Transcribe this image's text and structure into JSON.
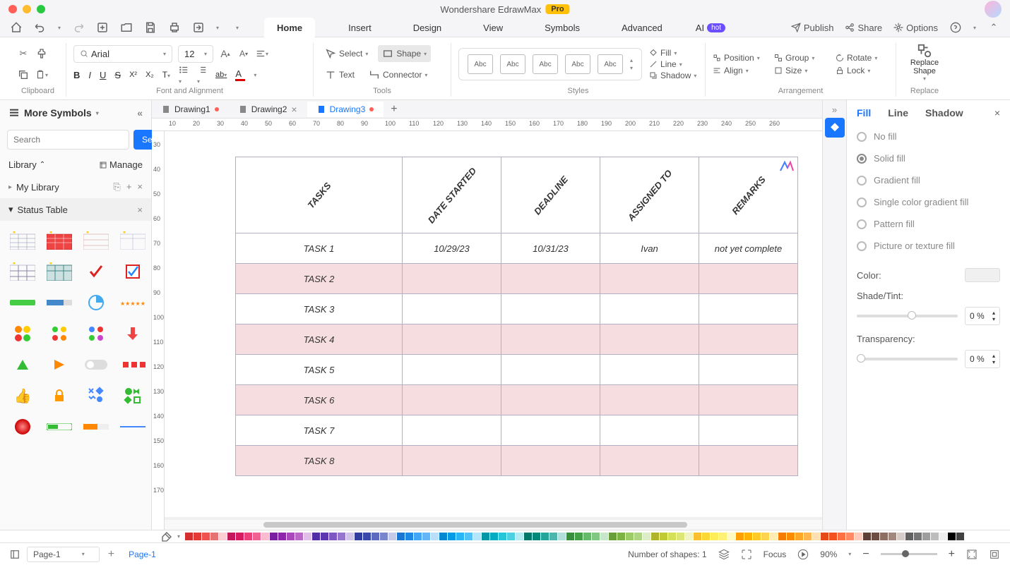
{
  "title": "Wondershare EdrawMax",
  "pro_badge": "Pro",
  "qat_right": {
    "publish": "Publish",
    "share": "Share",
    "options": "Options"
  },
  "menu_tabs": [
    "Home",
    "Insert",
    "Design",
    "View",
    "Symbols",
    "Advanced"
  ],
  "menu_ai": "AI",
  "menu_hot": "hot",
  "ribbon": {
    "clipboard_label": "Clipboard",
    "font_name": "Arial",
    "font_size": "12",
    "font_label": "Font and Alignment",
    "select_label": "Select",
    "shape_label": "Shape",
    "text_label": "Text",
    "connector_label": "Connector",
    "tools_label": "Tools",
    "abc": "Abc",
    "styles_label": "Styles",
    "fill_label": "Fill",
    "line_label": "Line",
    "shadow_label": "Shadow",
    "position_label": "Position",
    "align_label": "Align",
    "group_label": "Group",
    "size_label": "Size",
    "rotate_label": "Rotate",
    "lock_label": "Lock",
    "arrangement_label": "Arrangement",
    "replace_shape": "Replace\nShape",
    "replace_label": "Replace"
  },
  "sidebar": {
    "title": "More Symbols",
    "search_placeholder": "Search",
    "search_btn": "Search",
    "library": "Library",
    "manage": "Manage",
    "my_library": "My Library",
    "status_table": "Status Table"
  },
  "doc_tabs": [
    {
      "name": "Drawing1",
      "modified": true,
      "active": false
    },
    {
      "name": "Drawing2",
      "modified": false,
      "active": false,
      "closable": true
    },
    {
      "name": "Drawing3",
      "modified": true,
      "active": true
    }
  ],
  "ruler_h": [
    10,
    20,
    30,
    40,
    50,
    60,
    70,
    80,
    90,
    100,
    110,
    120,
    130,
    140,
    150,
    160,
    170,
    180,
    190,
    200,
    210,
    220,
    230,
    240,
    250,
    260
  ],
  "ruler_v": [
    30,
    40,
    50,
    60,
    70,
    80,
    90,
    100,
    110,
    120,
    130,
    140,
    150,
    160,
    170
  ],
  "table": {
    "headers": [
      "TASKS",
      "DATE STARTED",
      "DEADLINE",
      "ASSIGNED TO",
      "REMARKS"
    ],
    "rows": [
      {
        "task": "TASK 1",
        "date_started": "10/29/23",
        "deadline": "10/31/23",
        "assigned": "Ivan",
        "remarks": "not yet complete",
        "even": false
      },
      {
        "task": "TASK 2",
        "date_started": "",
        "deadline": "",
        "assigned": "",
        "remarks": "",
        "even": true
      },
      {
        "task": "TASK 3",
        "date_started": "",
        "deadline": "",
        "assigned": "",
        "remarks": "",
        "even": false
      },
      {
        "task": "TASK 4",
        "date_started": "",
        "deadline": "",
        "assigned": "",
        "remarks": "",
        "even": true
      },
      {
        "task": "TASK 5",
        "date_started": "",
        "deadline": "",
        "assigned": "",
        "remarks": "",
        "even": false
      },
      {
        "task": "TASK 6",
        "date_started": "",
        "deadline": "",
        "assigned": "",
        "remarks": "",
        "even": true
      },
      {
        "task": "TASK 7",
        "date_started": "",
        "deadline": "",
        "assigned": "",
        "remarks": "",
        "even": false
      },
      {
        "task": "TASK 8",
        "date_started": "",
        "deadline": "",
        "assigned": "",
        "remarks": "",
        "even": true
      }
    ],
    "header_bg": "#ffffff",
    "even_row_bg": "#f6dde0",
    "border_color": "#b0b0c8"
  },
  "right_panel": {
    "tabs": [
      "Fill",
      "Line",
      "Shadow"
    ],
    "fill_options": [
      "No fill",
      "Solid fill",
      "Gradient fill",
      "Single color gradient fill",
      "Pattern fill",
      "Picture or texture fill"
    ],
    "selected_fill": 1,
    "color_label": "Color:",
    "shade_label": "Shade/Tint:",
    "transparency_label": "Transparency:",
    "shade_value": "0 %",
    "transparency_value": "0 %"
  },
  "color_bar": [
    "#d32f2f",
    "#e53935",
    "#ef5350",
    "#e57373",
    "#ffcdd2",
    "#c2185b",
    "#d81b60",
    "#ec407a",
    "#f06292",
    "#f8bbd0",
    "#7b1fa2",
    "#8e24aa",
    "#ab47bc",
    "#ba68c8",
    "#e1bee7",
    "#512da8",
    "#5e35b1",
    "#7e57c2",
    "#9575cd",
    "#d1c4e9",
    "#303f9f",
    "#3949ab",
    "#5c6bc0",
    "#7986cb",
    "#c5cae9",
    "#1976d2",
    "#1e88e5",
    "#42a5f5",
    "#64b5f6",
    "#bbdefb",
    "#0288d1",
    "#039be5",
    "#29b6f6",
    "#4fc3f7",
    "#b3e5fc",
    "#0097a7",
    "#00acc1",
    "#26c6da",
    "#4dd0e1",
    "#b2ebf2",
    "#00796b",
    "#00897b",
    "#26a69a",
    "#4db6ac",
    "#b2dfdb",
    "#388e3c",
    "#43a047",
    "#66bb6a",
    "#81c784",
    "#c8e6c9",
    "#689f38",
    "#7cb342",
    "#9ccc65",
    "#aed581",
    "#dcedc8",
    "#afb42b",
    "#c0ca33",
    "#d4e157",
    "#dce775",
    "#f0f4c3",
    "#fbc02d",
    "#fdd835",
    "#ffee58",
    "#fff176",
    "#fff9c4",
    "#ffa000",
    "#ffb300",
    "#ffca28",
    "#ffd54f",
    "#ffecb3",
    "#f57c00",
    "#fb8c00",
    "#ffa726",
    "#ffb74d",
    "#ffe0b2",
    "#e64a19",
    "#f4511e",
    "#ff7043",
    "#ff8a65",
    "#ffccbc",
    "#5d4037",
    "#6d4c41",
    "#8d6e63",
    "#a1887f",
    "#d7ccc8",
    "#616161",
    "#757575",
    "#9e9e9e",
    "#bdbdbd",
    "#eeeeee",
    "#000000",
    "#424242",
    "#ffffff"
  ],
  "status_bar": {
    "page_select": "Page-1",
    "page_tab": "Page-1",
    "shapes_count": "Number of shapes: 1",
    "focus": "Focus",
    "zoom": "90%"
  }
}
